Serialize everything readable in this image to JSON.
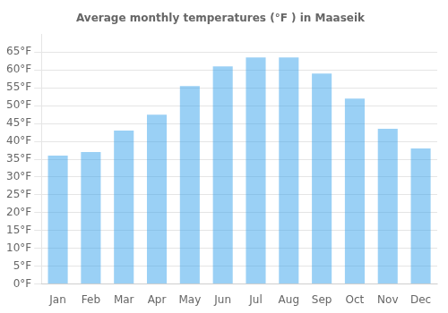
{
  "chart_data": {
    "type": "bar",
    "title": "Average monthly temperatures (°F ) in Maaseik",
    "categories": [
      "Jan",
      "Feb",
      "Mar",
      "Apr",
      "May",
      "Jun",
      "Jul",
      "Aug",
      "Sep",
      "Oct",
      "Nov",
      "Dec"
    ],
    "values": [
      36,
      37,
      43,
      47.5,
      55.5,
      61,
      63.5,
      63.5,
      59,
      52,
      43.5,
      38
    ],
    "ylim": [
      0,
      70
    ],
    "yticks": [
      {
        "value": 0,
        "label": "0°F"
      },
      {
        "value": 5,
        "label": "5°F"
      },
      {
        "value": 10,
        "label": "10°F"
      },
      {
        "value": 15,
        "label": "15°F"
      },
      {
        "value": 20,
        "label": "20°F"
      },
      {
        "value": 25,
        "label": "25°F"
      },
      {
        "value": 30,
        "label": "30°F"
      },
      {
        "value": 35,
        "label": "35°F"
      },
      {
        "value": 40,
        "label": "40°F"
      },
      {
        "value": 45,
        "label": "45°F"
      },
      {
        "value": 50,
        "label": "50°F"
      },
      {
        "value": 55,
        "label": "55°F"
      },
      {
        "value": 60,
        "label": "60°F"
      },
      {
        "value": 65,
        "label": "65°F"
      }
    ],
    "grid": true
  }
}
